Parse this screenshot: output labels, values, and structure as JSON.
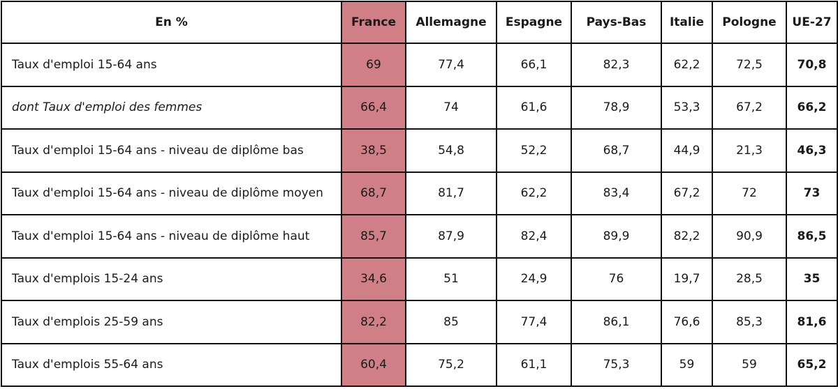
{
  "table": {
    "corner_label": "En %",
    "columns": [
      "France",
      "Allemagne",
      "Espagne",
      "Pays-Bas",
      "Italie",
      "Pologne",
      "UE-27"
    ],
    "rows": [
      {
        "label": "Taux d'emploi 15-64 ans",
        "italic": false,
        "values": [
          "69",
          "77,4",
          "66,1",
          "82,3",
          "62,2",
          "72,5",
          "70,8"
        ]
      },
      {
        "label": "dont Taux d'emploi des femmes",
        "italic": true,
        "values": [
          "66,4",
          "74",
          "61,6",
          "78,9",
          "53,3",
          "67,2",
          "66,2"
        ]
      },
      {
        "label": "Taux d'emploi 15-64 ans - niveau de diplôme bas",
        "italic": false,
        "values": [
          "38,5",
          "54,8",
          "52,2",
          "68,7",
          "44,9",
          "21,3",
          "46,3"
        ]
      },
      {
        "label": "Taux d'emploi 15-64 ans - niveau de diplôme moyen",
        "italic": false,
        "values": [
          "68,7",
          "81,7",
          "62,2",
          "83,4",
          "67,2",
          "72",
          "73"
        ]
      },
      {
        "label": "Taux d'emploi 15-64 ans - niveau de diplôme haut",
        "italic": false,
        "values": [
          "85,7",
          "87,9",
          "82,4",
          "89,9",
          "82,2",
          "90,9",
          "86,5"
        ]
      },
      {
        "label": "Taux d'emplois 15-24 ans",
        "italic": false,
        "values": [
          "34,6",
          "51",
          "24,9",
          "76",
          "19,7",
          "28,5",
          "35"
        ]
      },
      {
        "label": "Taux d'emplois 25-59 ans",
        "italic": false,
        "values": [
          "82,2",
          "85",
          "77,4",
          "86,1",
          "76,6",
          "85,3",
          "81,6"
        ]
      },
      {
        "label": "Taux d'emplois 55-64 ans",
        "italic": false,
        "values": [
          "60,4",
          "75,2",
          "61,1",
          "75,3",
          "59",
          "59",
          "65,2"
        ]
      }
    ]
  },
  "colors": {
    "highlight_france": "#d17f86",
    "border": "#111111"
  }
}
